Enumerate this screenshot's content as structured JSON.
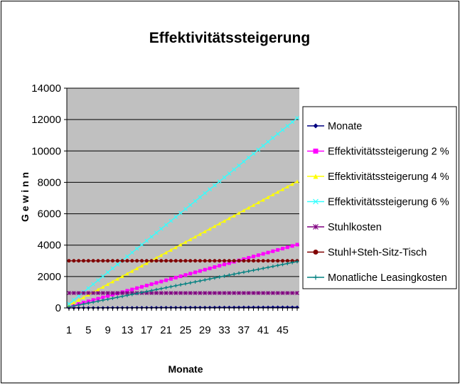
{
  "chart_data": {
    "type": "line",
    "title": "Effektivitätssteigerung",
    "xlabel": "Monate",
    "ylabel": "G e w i n n",
    "x": [
      1,
      2,
      3,
      4,
      5,
      6,
      7,
      8,
      9,
      10,
      11,
      12,
      13,
      14,
      15,
      16,
      17,
      18,
      19,
      20,
      21,
      22,
      23,
      24,
      25,
      26,
      27,
      28,
      29,
      30,
      31,
      32,
      33,
      34,
      35,
      36,
      37,
      38,
      39,
      40,
      41,
      42,
      43,
      44,
      45,
      46,
      47,
      48
    ],
    "x_tick_labels": [
      "1",
      "5",
      "9",
      "13",
      "17",
      "21",
      "25",
      "29",
      "33",
      "37",
      "41",
      "45"
    ],
    "ylim": [
      0,
      14000
    ],
    "y_ticks": [
      0,
      2000,
      4000,
      6000,
      8000,
      10000,
      12000,
      14000
    ],
    "grid": true,
    "plot_background": "#c0c0c0",
    "legend_position": "right",
    "series": [
      {
        "name": "Monate",
        "color": "#000080",
        "marker": "diamond",
        "values": [
          1,
          2,
          3,
          4,
          5,
          6,
          7,
          8,
          9,
          10,
          11,
          12,
          13,
          14,
          15,
          16,
          17,
          18,
          19,
          20,
          21,
          22,
          23,
          24,
          25,
          26,
          27,
          28,
          29,
          30,
          31,
          32,
          33,
          34,
          35,
          36,
          37,
          38,
          39,
          40,
          41,
          42,
          43,
          44,
          45,
          46,
          47,
          48
        ]
      },
      {
        "name": "Effektivitätssteigerung 2 %",
        "color": "#ff00ff",
        "marker": "square",
        "values": [
          84,
          168,
          252,
          336,
          420,
          504,
          588,
          672,
          756,
          840,
          924,
          1008,
          1092,
          1176,
          1260,
          1344,
          1428,
          1512,
          1596,
          1680,
          1764,
          1848,
          1932,
          2016,
          2100,
          2184,
          2268,
          2352,
          2436,
          2520,
          2604,
          2688,
          2772,
          2856,
          2940,
          3024,
          3108,
          3192,
          3276,
          3360,
          3444,
          3528,
          3612,
          3696,
          3780,
          3864,
          3948,
          4032
        ]
      },
      {
        "name": "Effektivitätssteigerung 4 %",
        "color": "#ffff00",
        "marker": "triangle",
        "values": [
          168,
          336,
          504,
          672,
          840,
          1008,
          1176,
          1344,
          1512,
          1680,
          1848,
          2016,
          2184,
          2352,
          2520,
          2688,
          2856,
          3024,
          3192,
          3360,
          3528,
          3696,
          3864,
          4032,
          4200,
          4368,
          4536,
          4704,
          4872,
          5040,
          5208,
          5376,
          5544,
          5712,
          5880,
          6048,
          6216,
          6384,
          6552,
          6720,
          6888,
          7056,
          7224,
          7392,
          7560,
          7728,
          7896,
          8064
        ]
      },
      {
        "name": "Effektivitätssteigerung 6 %",
        "color": "#33ffff",
        "marker": "x",
        "values": [
          252,
          504,
          756,
          1008,
          1260,
          1512,
          1764,
          2016,
          2268,
          2520,
          2772,
          3024,
          3276,
          3528,
          3780,
          4032,
          4284,
          4536,
          4788,
          5040,
          5292,
          5544,
          5796,
          6048,
          6300,
          6552,
          6804,
          7056,
          7308,
          7560,
          7812,
          8064,
          8316,
          8568,
          8820,
          9072,
          9324,
          9576,
          9828,
          10080,
          10332,
          10584,
          10836,
          11088,
          11340,
          11592,
          11844,
          12096
        ]
      },
      {
        "name": "Stuhlkosten",
        "color": "#800080",
        "marker": "star",
        "values": [
          950,
          950,
          950,
          950,
          950,
          950,
          950,
          950,
          950,
          950,
          950,
          950,
          950,
          950,
          950,
          950,
          950,
          950,
          950,
          950,
          950,
          950,
          950,
          950,
          950,
          950,
          950,
          950,
          950,
          950,
          950,
          950,
          950,
          950,
          950,
          950,
          950,
          950,
          950,
          950,
          950,
          950,
          950,
          950,
          950,
          950,
          950,
          950
        ]
      },
      {
        "name": "Stuhl+Steh-Sitz-Tisch",
        "color": "#800000",
        "marker": "circle",
        "values": [
          3000,
          3000,
          3000,
          3000,
          3000,
          3000,
          3000,
          3000,
          3000,
          3000,
          3000,
          3000,
          3000,
          3000,
          3000,
          3000,
          3000,
          3000,
          3000,
          3000,
          3000,
          3000,
          3000,
          3000,
          3000,
          3000,
          3000,
          3000,
          3000,
          3000,
          3000,
          3000,
          3000,
          3000,
          3000,
          3000,
          3000,
          3000,
          3000,
          3000,
          3000,
          3000,
          3000,
          3000,
          3000,
          3000,
          3000,
          3000
        ]
      },
      {
        "name": "Monatliche Leasingkosten",
        "color": "#008080",
        "marker": "plus",
        "values": [
          62,
          123,
          185,
          246,
          308,
          369,
          431,
          492,
          554,
          615,
          677,
          738,
          800,
          861,
          923,
          984,
          1046,
          1107,
          1169,
          1230,
          1292,
          1353,
          1415,
          1476,
          1538,
          1599,
          1661,
          1722,
          1784,
          1845,
          1907,
          1968,
          2030,
          2091,
          2153,
          2214,
          2276,
          2337,
          2399,
          2460,
          2522,
          2583,
          2645,
          2706,
          2768,
          2829,
          2891,
          2952
        ]
      }
    ]
  }
}
